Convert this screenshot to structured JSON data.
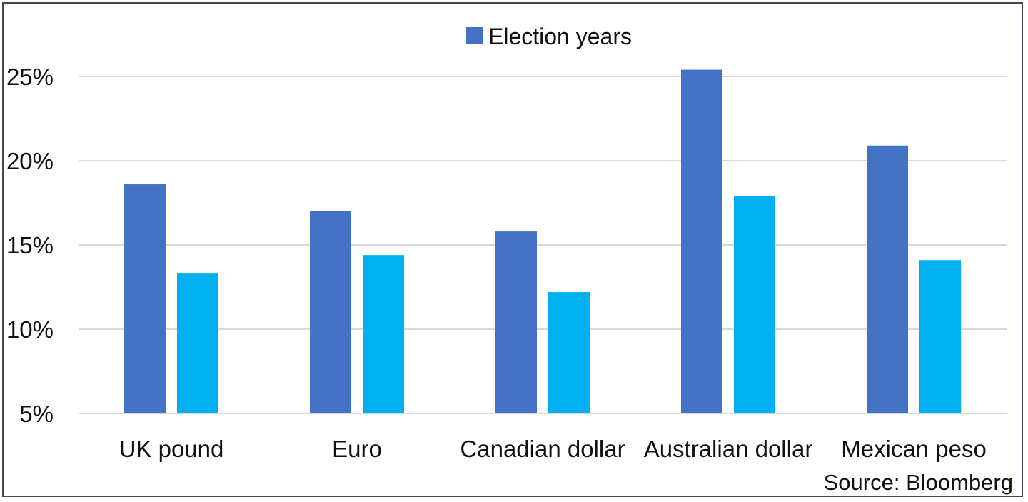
{
  "chart_data": {
    "type": "bar",
    "categories": [
      "UK pound",
      "Euro",
      "Canadian dollar",
      "Australian dollar",
      "Mexican peso"
    ],
    "series": [
      {
        "name": "Election years",
        "color": "#4472c4",
        "values": [
          18.6,
          17.0,
          15.8,
          25.4,
          20.9
        ]
      },
      {
        "name": "",
        "color": "#00b0f0",
        "values": [
          13.3,
          14.4,
          12.2,
          17.9,
          14.1
        ]
      }
    ],
    "yticks": [
      "5%",
      "10%",
      "15%",
      "20%",
      "25%"
    ],
    "ytick_values": [
      5,
      10,
      15,
      20,
      25
    ],
    "ylim": [
      5,
      25
    ],
    "grid": true,
    "legend_position": "top"
  },
  "legend_label": "Election years",
  "source": "Source: Bloomberg"
}
